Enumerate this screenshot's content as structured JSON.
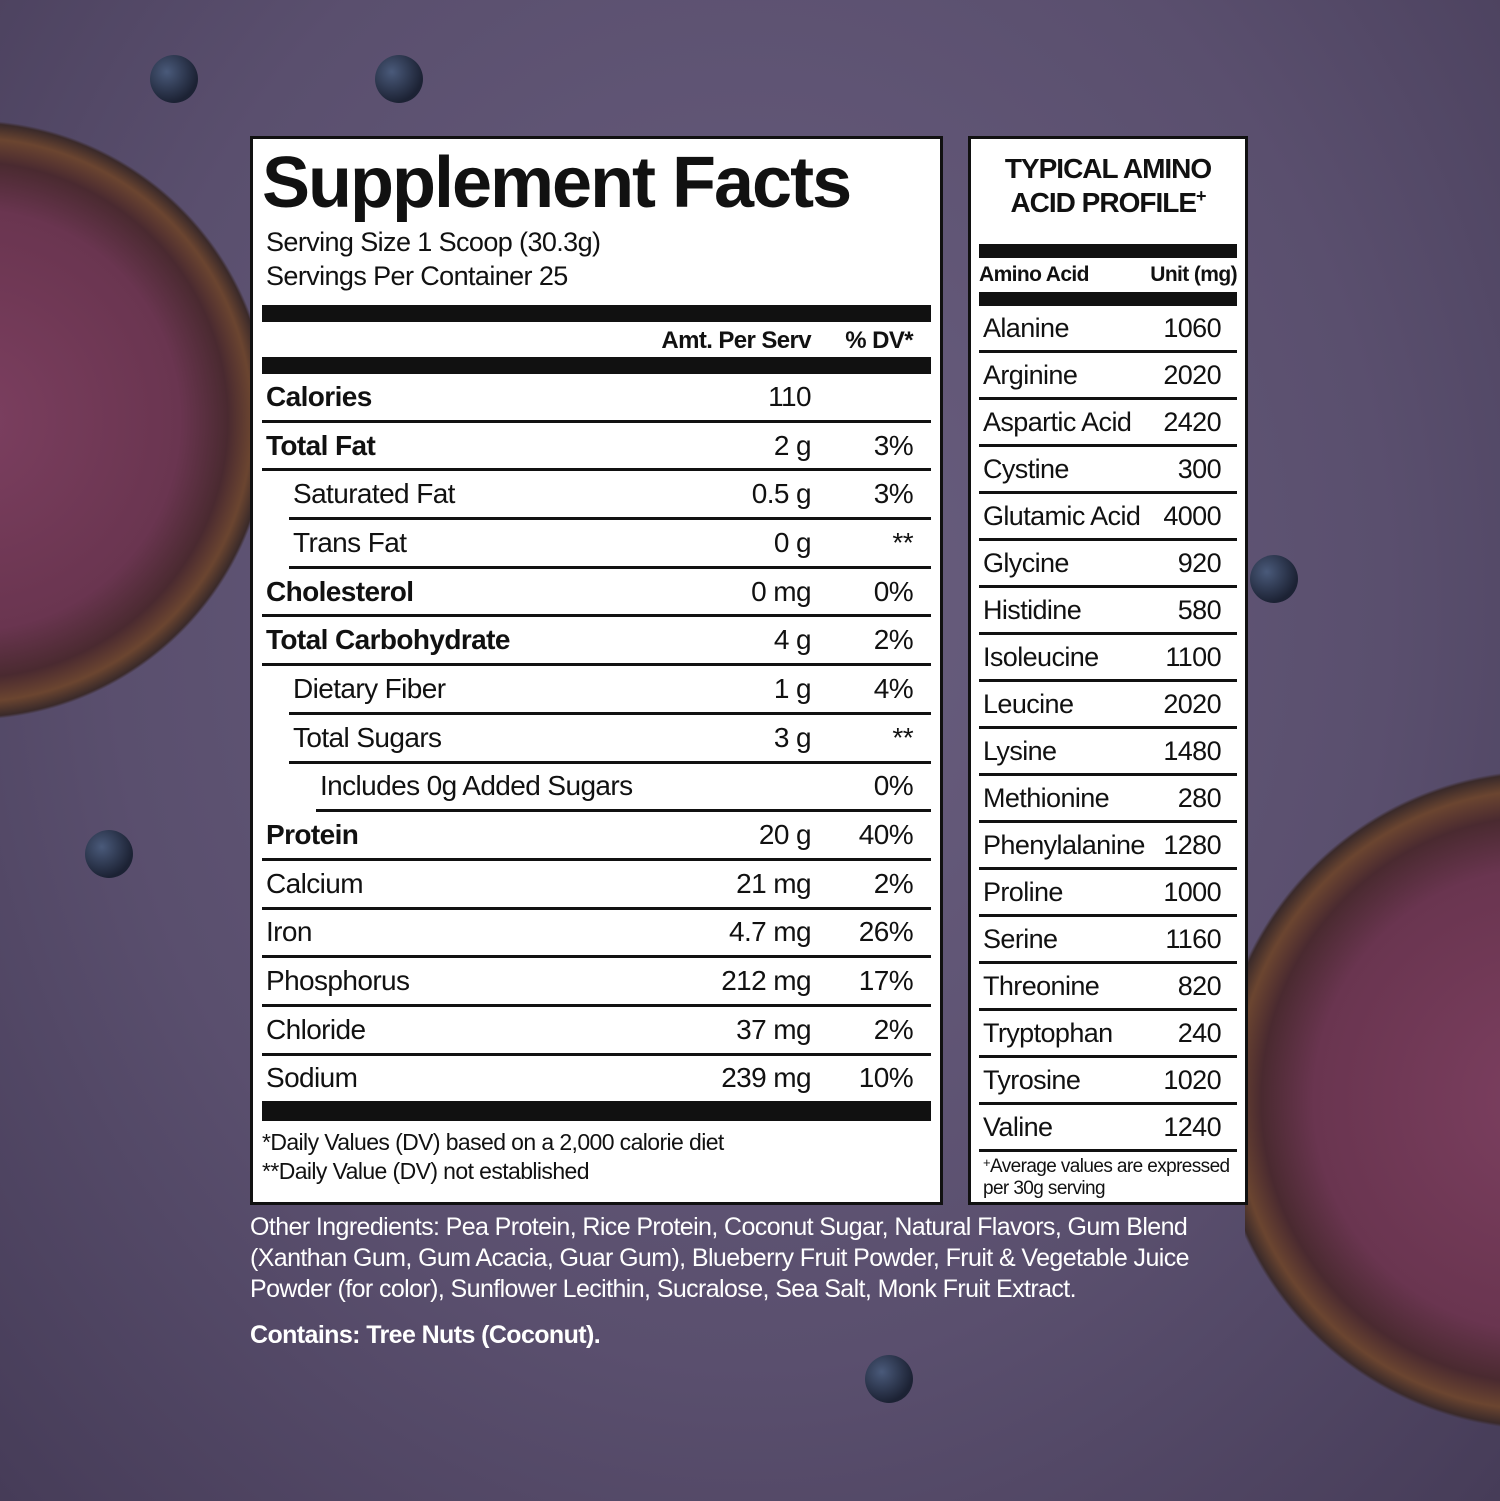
{
  "supplement_facts": {
    "title": "Supplement Facts",
    "serving_size": "Serving Size 1 Scoop (30.3g)",
    "servings_per_container": "Servings Per Container 25",
    "col_amount": "Amt. Per Serv",
    "col_dv": "% DV*",
    "rows": [
      {
        "name": "Calories",
        "amount": "110",
        "dv": "",
        "bold": true,
        "indent": 0
      },
      {
        "name": "Total Fat",
        "amount": "2 g",
        "dv": "3%",
        "bold": true,
        "indent": 0
      },
      {
        "name": "Saturated Fat",
        "amount": "0.5 g",
        "dv": "3%",
        "bold": false,
        "indent": 1
      },
      {
        "name": "Trans Fat",
        "amount": "0 g",
        "dv": "**",
        "bold": false,
        "indent": 1
      },
      {
        "name": "Cholesterol",
        "amount": "0 mg",
        "dv": "0%",
        "bold": true,
        "indent": 0
      },
      {
        "name": "Total Carbohydrate",
        "amount": "4 g",
        "dv": "2%",
        "bold": true,
        "indent": 0
      },
      {
        "name": "Dietary Fiber",
        "amount": "1 g",
        "dv": "4%",
        "bold": false,
        "indent": 1
      },
      {
        "name": "Total Sugars",
        "amount": "3 g",
        "dv": "**",
        "bold": false,
        "indent": 1
      },
      {
        "name": "Includes 0g Added Sugars",
        "amount": "",
        "dv": "0%",
        "bold": false,
        "indent": 2
      },
      {
        "name": "Protein",
        "amount": "20 g",
        "dv": "40%",
        "bold": true,
        "indent": 0
      },
      {
        "name": "Calcium",
        "amount": "21 mg",
        "dv": "2%",
        "bold": false,
        "indent": 0
      },
      {
        "name": "Iron",
        "amount": "4.7 mg",
        "dv": "26%",
        "bold": false,
        "indent": 0
      },
      {
        "name": "Phosphorus",
        "amount": "212 mg",
        "dv": "17%",
        "bold": false,
        "indent": 0
      },
      {
        "name": "Chloride",
        "amount": "37 mg",
        "dv": "2%",
        "bold": false,
        "indent": 0
      },
      {
        "name": "Sodium",
        "amount": "239 mg",
        "dv": "10%",
        "bold": false,
        "indent": 0
      }
    ],
    "footnote_1": "*Daily Values (DV) based on a 2,000 calorie diet",
    "footnote_2": "**Daily Value (DV) not established"
  },
  "amino_profile": {
    "title_line1": "TYPICAL AMINO",
    "title_line2": "ACID PROFILE",
    "title_mark": "+",
    "col_name": "Amino Acid",
    "col_unit": "Unit (mg)",
    "rows": [
      {
        "name": "Alanine",
        "value": "1060"
      },
      {
        "name": "Arginine",
        "value": "2020"
      },
      {
        "name": "Aspartic Acid",
        "value": "2420"
      },
      {
        "name": "Cystine",
        "value": "300"
      },
      {
        "name": "Glutamic Acid",
        "value": "4000"
      },
      {
        "name": "Glycine",
        "value": "920"
      },
      {
        "name": "Histidine",
        "value": "580"
      },
      {
        "name": "Isoleucine",
        "value": "1100"
      },
      {
        "name": "Leucine",
        "value": "2020"
      },
      {
        "name": "Lysine",
        "value": "1480"
      },
      {
        "name": "Methionine",
        "value": "280"
      },
      {
        "name": "Phenylalanine",
        "value": "1280"
      },
      {
        "name": "Proline",
        "value": "1000"
      },
      {
        "name": "Serine",
        "value": "1160"
      },
      {
        "name": "Threonine",
        "value": "820"
      },
      {
        "name": "Tryptophan",
        "value": "240"
      },
      {
        "name": "Tyrosine",
        "value": "1020"
      },
      {
        "name": "Valine",
        "value": "1240"
      }
    ],
    "footnote_mark": "+",
    "footnote": "Average values are expressed per 30g serving"
  },
  "other_ingredients": "Other Ingredients:  Pea Protein, Rice Protein, Coconut Sugar, Natural Flavors, Gum Blend (Xanthan Gum, Gum Acacia, Guar Gum), Blueberry Fruit Powder, Fruit & Vegetable Juice Powder (for color), Sunflower Lecithin, Sucralose, Sea Salt, Monk Fruit Extract.",
  "contains": "Contains: Tree Nuts (Coconut).",
  "colors": {
    "background": "#5e5373",
    "panel": "#ffffff",
    "ink": "#111111"
  }
}
